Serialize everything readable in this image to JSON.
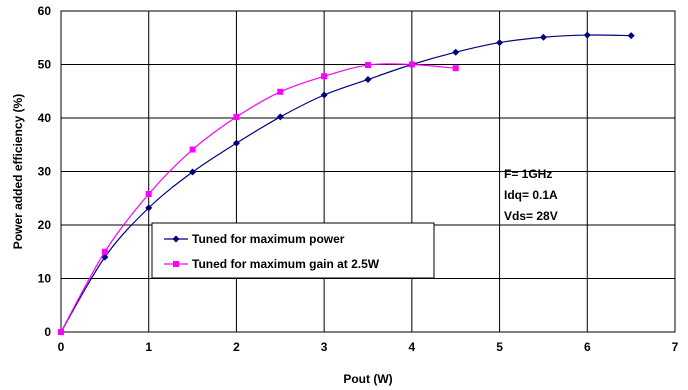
{
  "chart_data": {
    "type": "line",
    "title": "",
    "xlabel": "Pout (W)",
    "ylabel": "Power added efficiency (%)",
    "xlim": [
      0,
      7
    ],
    "ylim": [
      0,
      60
    ],
    "xticks": [
      0,
      1,
      2,
      3,
      4,
      5,
      6,
      7
    ],
    "yticks": [
      0,
      10,
      20,
      30,
      40,
      50,
      60
    ],
    "grid": true,
    "legend_placement": "lower-left",
    "series": [
      {
        "name": "Tuned for maximum power",
        "color": "#000080",
        "marker": "diamond",
        "x": [
          0,
          0.5,
          1.0,
          1.5,
          2.0,
          2.5,
          3.0,
          3.5,
          4.0,
          4.5,
          5.0,
          5.5,
          6.0,
          6.5
        ],
        "y": [
          0,
          14.0,
          23.2,
          29.9,
          35.3,
          40.2,
          44.3,
          47.2,
          50.0,
          52.3,
          54.1,
          55.1,
          55.5,
          55.4
        ]
      },
      {
        "name": "Tuned for maximum gain at 2.5W",
        "color": "#ff00ff",
        "marker": "square",
        "x": [
          0,
          0.5,
          1.0,
          1.5,
          2.0,
          2.5,
          3.0,
          3.5,
          4.0,
          4.5
        ],
        "y": [
          0,
          15.0,
          25.8,
          34.1,
          40.2,
          44.9,
          47.8,
          49.9,
          50.0,
          49.3
        ]
      }
    ],
    "annotations": [
      "F= 1GHz",
      "Idq= 0.1A",
      "Vds= 28V"
    ]
  }
}
